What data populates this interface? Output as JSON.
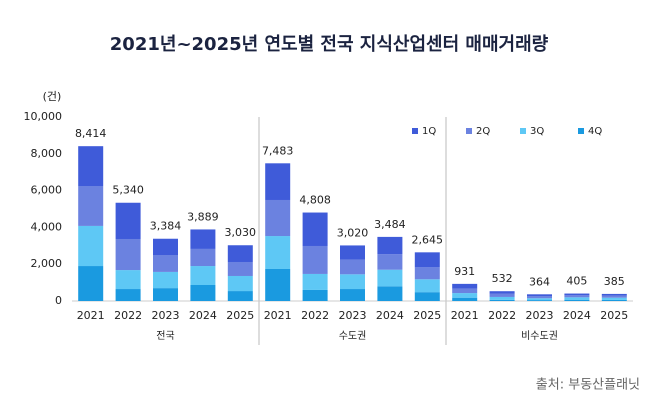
{
  "chart_data": {
    "type": "stacked_bar",
    "title": "2021년~2025년 연도별 전국 지식산업센터 매매거래량",
    "unit_label": "(건)",
    "source": "출처: 부동산플래닛",
    "groups": [
      "전국",
      "수도권",
      "비수도권"
    ],
    "categories": [
      "2021",
      "2022",
      "2023",
      "2024",
      "2025",
      "2021",
      "2022",
      "2023",
      "2024",
      "2025",
      "2021",
      "2022",
      "2023",
      "2024",
      "2025"
    ],
    "series": [
      {
        "name": "4Q",
        "color": "#1a9ae0",
        "values": [
          1900,
          650,
          700,
          870,
          540,
          1740,
          600,
          650,
          800,
          480,
          180,
          60,
          50,
          70,
          60
        ]
      },
      {
        "name": "3Q",
        "color": "#5ec8f5",
        "values": [
          2180,
          1030,
          880,
          1030,
          820,
          1790,
          870,
          800,
          900,
          700,
          250,
          160,
          100,
          130,
          120
        ]
      },
      {
        "name": "2Q",
        "color": "#6b82e0",
        "values": [
          2170,
          1690,
          920,
          930,
          760,
          1960,
          1520,
          800,
          850,
          650,
          240,
          170,
          120,
          110,
          110
        ]
      },
      {
        "name": "1Q",
        "color": "#3f5bd9",
        "values": [
          2164,
          1970,
          884,
          1059,
          910,
          1993,
          1818,
          770,
          934,
          815,
          261,
          142,
          94,
          95,
          95
        ]
      }
    ],
    "totals": [
      {
        "value": 8414,
        "label": "8,414"
      },
      {
        "value": 5340,
        "label": "5,340"
      },
      {
        "value": 3384,
        "label": "3,384"
      },
      {
        "value": 3889,
        "label": "3,889"
      },
      {
        "value": 3030,
        "label": "3,030"
      },
      {
        "value": 7483,
        "label": "7,483"
      },
      {
        "value": 4808,
        "label": "4,808"
      },
      {
        "value": 3020,
        "label": "3,020"
      },
      {
        "value": 3484,
        "label": "3,484"
      },
      {
        "value": 2645,
        "label": "2,645"
      },
      931,
      532,
      364,
      405,
      385
    ],
    "ylim": [
      0,
      10000
    ],
    "yticks": [
      0,
      {
        "value": 2000,
        "label": "2,000"
      },
      {
        "value": 4000,
        "label": "4,000"
      },
      {
        "value": 6000,
        "label": "6,000"
      },
      {
        "value": 8000,
        "label": "8,000"
      },
      {
        "value": 10000,
        "label": "10,000"
      }
    ],
    "grid": false,
    "legend": "top-right"
  }
}
